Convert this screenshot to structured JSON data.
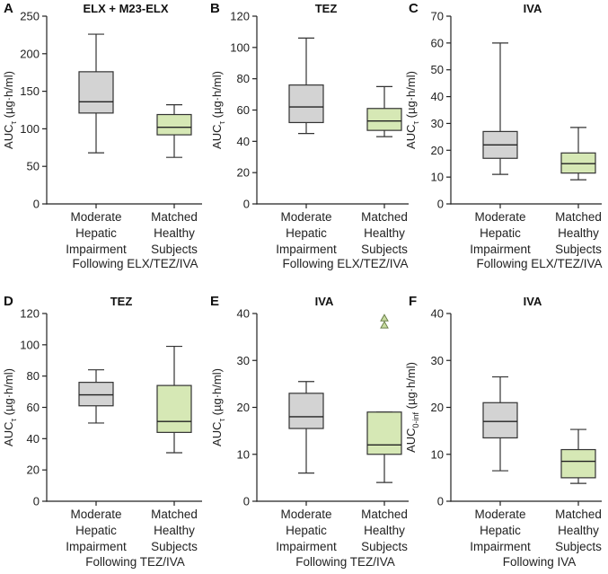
{
  "colors": {
    "hepatic_fill": "#d3d3d3",
    "healthy_fill": "#d6e8b5",
    "outlier_fill": "#c8dca0"
  },
  "chart_data": [
    {
      "panel": "A",
      "type": "box",
      "title": "ELX + M23-ELX",
      "ylabel": {
        "main": "AUC",
        "sub": "τ",
        "unit": " (µg·h/ml)"
      },
      "ylim": [
        0,
        250
      ],
      "yticks": [
        0,
        50,
        100,
        150,
        200,
        250
      ],
      "categories": [
        {
          "lines": [
            "Moderate",
            "Hepatic",
            "Impairment"
          ]
        },
        {
          "lines": [
            "Matched",
            "Healthy",
            "Subjects"
          ]
        }
      ],
      "footer": "Following ELX/TEZ/IVA",
      "boxes": [
        {
          "group": "hepatic",
          "min": 68,
          "q1": 121,
          "median": 136,
          "q3": 176,
          "max": 226
        },
        {
          "group": "healthy",
          "min": 62,
          "q1": 92,
          "median": 102,
          "q3": 119,
          "max": 132
        }
      ]
    },
    {
      "panel": "B",
      "type": "box",
      "title": "TEZ",
      "ylabel": {
        "main": "AUC",
        "sub": "τ",
        "unit": " (µg·h/ml)"
      },
      "ylim": [
        0,
        120
      ],
      "yticks": [
        0,
        20,
        40,
        60,
        80,
        100,
        120
      ],
      "categories": [
        {
          "lines": [
            "Moderate",
            "Hepatic",
            "Impairment"
          ]
        },
        {
          "lines": [
            "Matched",
            "Healthy",
            "Subjects"
          ]
        }
      ],
      "footer": "Following ELX/TEZ/IVA",
      "boxes": [
        {
          "group": "hepatic",
          "min": 45,
          "q1": 52,
          "median": 62,
          "q3": 76,
          "max": 106
        },
        {
          "group": "healthy",
          "min": 43,
          "q1": 47,
          "median": 53,
          "q3": 61,
          "max": 75
        }
      ]
    },
    {
      "panel": "C",
      "type": "box",
      "title": "IVA",
      "ylabel": {
        "main": "AUC",
        "sub": "τ",
        "unit": " (µg·h/ml)"
      },
      "ylim": [
        0,
        70
      ],
      "yticks": [
        0,
        10,
        20,
        30,
        40,
        50,
        60,
        70
      ],
      "categories": [
        {
          "lines": [
            "Moderate",
            "Hepatic",
            "Impairment"
          ]
        },
        {
          "lines": [
            "Matched",
            "Healthy",
            "Subjects"
          ]
        }
      ],
      "footer": "Following ELX/TEZ/IVA",
      "boxes": [
        {
          "group": "hepatic",
          "min": 11,
          "q1": 17,
          "median": 22,
          "q3": 27,
          "max": 60
        },
        {
          "group": "healthy",
          "min": 9,
          "q1": 11.5,
          "median": 15,
          "q3": 19,
          "max": 28.5
        }
      ]
    },
    {
      "panel": "D",
      "type": "box",
      "title": "TEZ",
      "ylabel": {
        "main": "AUC",
        "sub": "τ",
        "unit": " (µg·h/ml)"
      },
      "ylim": [
        0,
        120
      ],
      "yticks": [
        0,
        20,
        40,
        60,
        80,
        100,
        120
      ],
      "categories": [
        {
          "lines": [
            "Moderate",
            "Hepatic",
            "Impairment"
          ]
        },
        {
          "lines": [
            "Matched",
            "Healthy",
            "Subjects"
          ]
        }
      ],
      "footer": "Following TEZ/IVA",
      "boxes": [
        {
          "group": "hepatic",
          "min": 50,
          "q1": 61,
          "median": 68,
          "q3": 76,
          "max": 84
        },
        {
          "group": "healthy",
          "min": 31,
          "q1": 44,
          "median": 51,
          "q3": 74,
          "max": 99
        }
      ]
    },
    {
      "panel": "E",
      "type": "box",
      "title": "IVA",
      "ylabel": {
        "main": "AUC",
        "sub": "τ",
        "unit": " (µg·h/ml)"
      },
      "ylim": [
        0,
        40
      ],
      "yticks": [
        0,
        10,
        20,
        30,
        40
      ],
      "categories": [
        {
          "lines": [
            "Moderate",
            "Hepatic",
            "Impairment"
          ]
        },
        {
          "lines": [
            "Matched",
            "Healthy",
            "Subjects"
          ]
        }
      ],
      "footer": "Following TEZ/IVA",
      "boxes": [
        {
          "group": "hepatic",
          "min": 6,
          "q1": 15.5,
          "median": 18,
          "q3": 23,
          "max": 25.5
        },
        {
          "group": "healthy",
          "min": 4,
          "q1": 10,
          "median": 12,
          "q3": 19,
          "max": 19,
          "outliers": [
            37.5,
            39
          ]
        }
      ]
    },
    {
      "panel": "F",
      "type": "box",
      "title": "IVA",
      "ylabel": {
        "main": "AUC",
        "sub": "0-inf",
        "unit": " (µg·h/ml)"
      },
      "ylim": [
        0,
        40
      ],
      "yticks": [
        0,
        10,
        20,
        30,
        40
      ],
      "categories": [
        {
          "lines": [
            "Moderate",
            "Hepatic",
            "Impairment"
          ]
        },
        {
          "lines": [
            "Matched",
            "Healthy",
            "Subjects"
          ]
        }
      ],
      "footer": "Following IVA",
      "boxes": [
        {
          "group": "hepatic",
          "min": 6.5,
          "q1": 13.5,
          "median": 17,
          "q3": 21,
          "max": 26.5
        },
        {
          "group": "healthy",
          "min": 3.8,
          "q1": 5,
          "median": 8.5,
          "q3": 11,
          "max": 15.3
        }
      ]
    }
  ]
}
